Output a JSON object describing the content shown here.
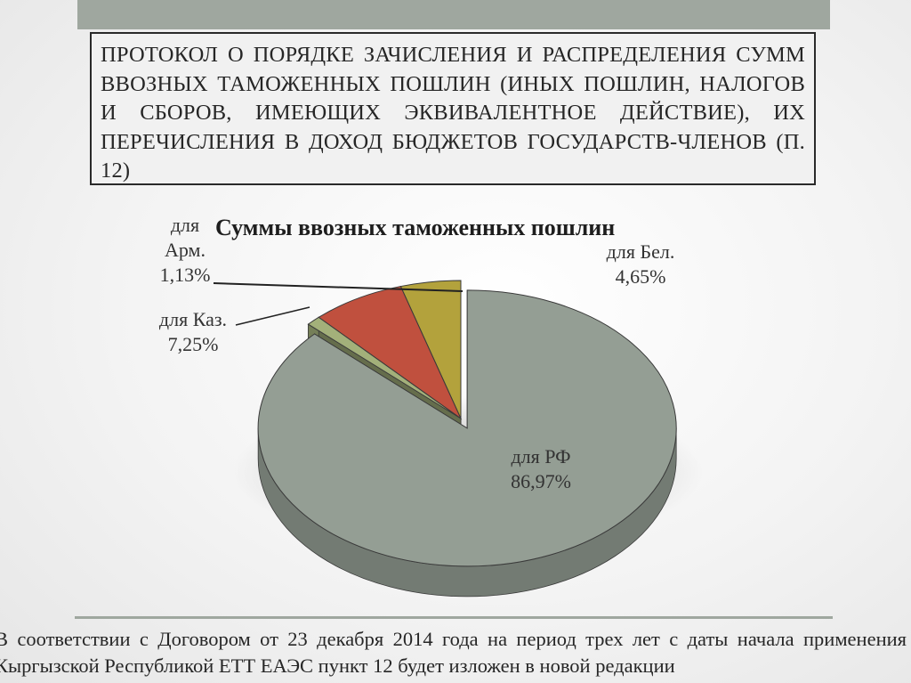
{
  "header": {
    "title": "ПРОТОКОЛ О ПОРЯДКЕ ЗАЧИСЛЕНИЯ И РАСПРЕДЕЛЕНИЯ СУММ ВВОЗНЫХ ТАМОЖЕННЫХ ПОШЛИН (ИНЫХ ПОШЛИН, НАЛОГОВ И СБОРОВ, ИМЕЮЩИХ ЭКВИВАЛЕНТНОЕ ДЕЙСТВИЕ), ИХ ПЕРЕЧИСЛЕНИЯ В ДОХОД БЮДЖЕТОВ ГОСУДАРСТВ-ЧЛЕНОВ (п. 12)"
  },
  "footer": {
    "text": "В соответствии с Договором от 23 декабря 2014 года на период трех лет с даты начала применения Кыргызской Республикой ЕТТ ЕАЭС пункт 12 будет изложен в новой редакции"
  },
  "colors": {
    "top_bar": "#9fa79f",
    "rf": "#949e94",
    "arm": "#a3b07a",
    "kaz": "#c0503e",
    "bel": "#b3a23c"
  },
  "chart_data": {
    "type": "pie",
    "title": "Суммы ввозных таможенных пошлин",
    "style": "3d-exploded",
    "slices": [
      {
        "key": "rf",
        "label": "для РФ",
        "value": 86.97,
        "value_text": "86,97%",
        "color": "#949e94"
      },
      {
        "key": "arm",
        "label": "для Арм.",
        "value": 1.13,
        "value_text": "1,13%",
        "color": "#a3b07a"
      },
      {
        "key": "kaz",
        "label": "для Каз.",
        "value": 7.25,
        "value_text": "7,25%",
        "color": "#c0503e"
      },
      {
        "key": "bel",
        "label": "для Бел.",
        "value": 4.65,
        "value_text": "4,65%",
        "color": "#b3a23c"
      }
    ]
  }
}
